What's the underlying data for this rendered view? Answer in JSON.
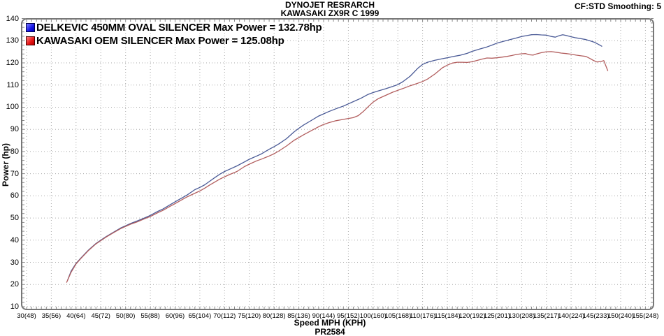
{
  "header": {
    "title_line1": "DYNOJET RESRARCH",
    "title_line2": "KAWASAKI ZX9R C 1999",
    "correction_note": "CF:STD Smoothing: 5"
  },
  "legend": [
    {
      "label": "DELKEVIC 450MM OVAL SILENCER Max Power = 132.78hp",
      "swatch_color": "#1414e6",
      "swatch_border": "#00004a"
    },
    {
      "label": "KAWASAKI OEM SILENCER Max Power = 125.08hp",
      "swatch_color": "#e61414",
      "swatch_border": "#4a0000"
    }
  ],
  "axes": {
    "y_title": "Power (hp)",
    "x_title": "Speed MPH (KPH)",
    "footer_code": "PR2584"
  },
  "chart_data": {
    "type": "line",
    "title": "DYNOJET RESRARCH / KAWASAKI ZX9R C 1999",
    "xlabel": "Speed MPH (KPH)",
    "ylabel": "Power (hp)",
    "xlim": [
      30,
      155
    ],
    "ylim": [
      10,
      140
    ],
    "grid": "dotted",
    "legend_position": "top-left",
    "smoothing": "5",
    "correction_factor": "STD",
    "y_ticks": [
      140,
      130,
      120,
      110,
      100,
      90,
      80,
      70,
      60,
      50,
      40,
      30,
      20,
      10
    ],
    "x_ticks": [
      {
        "mph": 30,
        "label": "30(48)"
      },
      {
        "mph": 35,
        "label": "35(56)"
      },
      {
        "mph": 40,
        "label": "40(64)"
      },
      {
        "mph": 45,
        "label": "45(72)"
      },
      {
        "mph": 50,
        "label": "50(80)"
      },
      {
        "mph": 55,
        "label": "55(88)"
      },
      {
        "mph": 60,
        "label": "60(96)"
      },
      {
        "mph": 65,
        "label": "65(104)"
      },
      {
        "mph": 70,
        "label": "70(112)"
      },
      {
        "mph": 75,
        "label": "75(120)"
      },
      {
        "mph": 80,
        "label": "80(128)"
      },
      {
        "mph": 85,
        "label": "85(136)"
      },
      {
        "mph": 90,
        "label": "90(144)"
      },
      {
        "mph": 95,
        "label": "95(152)"
      },
      {
        "mph": 100,
        "label": "100(160)"
      },
      {
        "mph": 105,
        "label": "105(168)"
      },
      {
        "mph": 110,
        "label": "110(176)"
      },
      {
        "mph": 115,
        "label": "115(184)"
      },
      {
        "mph": 120,
        "label": "120(192)"
      },
      {
        "mph": 125,
        "label": "125(201)"
      },
      {
        "mph": 130,
        "label": "130(208)"
      },
      {
        "mph": 135,
        "label": "135(217)"
      },
      {
        "mph": 140,
        "label": "140(224)"
      },
      {
        "mph": 145,
        "label": "145(233)"
      },
      {
        "mph": 150,
        "label": "150(240)"
      },
      {
        "mph": 155,
        "label": "155(248)"
      }
    ],
    "series": [
      {
        "name": "DELKEVIC 450MM OVAL SILENCER",
        "max_power_hp": 132.78,
        "color": "#4a5a96",
        "points": [
          [
            38.3,
            22
          ],
          [
            39,
            26
          ],
          [
            40,
            29.5
          ],
          [
            41,
            32
          ],
          [
            42.5,
            35.5
          ],
          [
            44,
            38.5
          ],
          [
            45,
            40
          ],
          [
            46,
            41.5
          ],
          [
            47.5,
            43.5
          ],
          [
            49,
            45.5
          ],
          [
            50,
            46.5
          ],
          [
            51,
            47.5
          ],
          [
            52.5,
            48.8
          ],
          [
            54,
            50.2
          ],
          [
            55,
            51.2
          ],
          [
            56.5,
            53
          ],
          [
            57.5,
            54
          ],
          [
            59,
            56
          ],
          [
            60,
            57.3
          ],
          [
            61.5,
            59.2
          ],
          [
            62.5,
            60.5
          ],
          [
            64,
            62.8
          ],
          [
            65,
            63.8
          ],
          [
            66,
            65
          ],
          [
            67,
            66.6
          ],
          [
            68,
            68.2
          ],
          [
            69,
            69.7
          ],
          [
            70,
            71
          ],
          [
            71,
            72
          ],
          [
            72.5,
            73.5
          ],
          [
            74,
            75.3
          ],
          [
            75,
            76.5
          ],
          [
            76.5,
            78
          ],
          [
            77.5,
            79
          ],
          [
            79,
            81
          ],
          [
            80,
            82.2
          ],
          [
            81,
            83.5
          ],
          [
            82.5,
            85.8
          ],
          [
            84,
            88.8
          ],
          [
            85,
            90.5
          ],
          [
            86,
            92
          ],
          [
            87.5,
            94
          ],
          [
            89,
            96
          ],
          [
            90,
            97
          ],
          [
            91,
            98
          ],
          [
            92.5,
            99.3
          ],
          [
            94,
            100.5
          ],
          [
            95,
            101.5
          ],
          [
            96,
            102.5
          ],
          [
            97.5,
            104
          ],
          [
            99,
            105.8
          ],
          [
            100,
            106.6
          ],
          [
            101,
            107.3
          ],
          [
            102.5,
            108.3
          ],
          [
            104,
            109.4
          ],
          [
            105,
            110.2
          ],
          [
            106,
            111.5
          ],
          [
            107.5,
            114
          ],
          [
            109,
            117.5
          ],
          [
            110,
            119.3
          ],
          [
            111,
            120.3
          ],
          [
            112.5,
            121.2
          ],
          [
            114,
            121.9
          ],
          [
            115,
            122.3
          ],
          [
            116,
            122.8
          ],
          [
            117.5,
            123.4
          ],
          [
            119,
            124.3
          ],
          [
            120,
            125.2
          ],
          [
            121.5,
            126.2
          ],
          [
            123,
            127.2
          ],
          [
            124,
            128
          ],
          [
            125,
            128.9
          ],
          [
            126.5,
            129.8
          ],
          [
            127.5,
            130.4
          ],
          [
            129,
            131.3
          ],
          [
            130,
            131.9
          ],
          [
            131,
            132.3
          ],
          [
            132,
            132.7
          ],
          [
            133,
            132.78
          ],
          [
            134,
            132.6
          ],
          [
            135,
            132.5
          ],
          [
            136,
            131.9
          ],
          [
            136.8,
            131.6
          ],
          [
            137.5,
            132.2
          ],
          [
            138.3,
            132.7
          ],
          [
            139,
            132.4
          ],
          [
            140,
            131.8
          ],
          [
            141,
            131.3
          ],
          [
            142,
            130.9
          ],
          [
            143,
            130.5
          ],
          [
            144,
            129.8
          ],
          [
            144.8,
            129.2
          ],
          [
            145.5,
            128.4
          ],
          [
            146.2,
            127.5
          ]
        ]
      },
      {
        "name": "KAWASAKI OEM SILENCER",
        "max_power_hp": 125.08,
        "color": "#b25e5e",
        "points": [
          [
            38.1,
            21
          ],
          [
            39,
            25.5
          ],
          [
            40,
            29.3
          ],
          [
            41,
            31.8
          ],
          [
            42.5,
            35.3
          ],
          [
            44,
            38.3
          ],
          [
            45,
            39.8
          ],
          [
            46,
            41.3
          ],
          [
            47.5,
            43.3
          ],
          [
            49,
            45.2
          ],
          [
            50,
            46.2
          ],
          [
            51,
            47.2
          ],
          [
            52.5,
            48.4
          ],
          [
            54,
            49.8
          ],
          [
            55,
            50.7
          ],
          [
            56.5,
            52.4
          ],
          [
            57.5,
            53.4
          ],
          [
            59,
            55.3
          ],
          [
            60,
            56.5
          ],
          [
            61.5,
            58.4
          ],
          [
            62.5,
            59.6
          ],
          [
            64,
            61.2
          ],
          [
            65,
            62.2
          ],
          [
            66,
            63.5
          ],
          [
            67,
            64.9
          ],
          [
            68,
            66.2
          ],
          [
            69,
            67.5
          ],
          [
            70,
            68.6
          ],
          [
            71,
            69.6
          ],
          [
            72.5,
            71
          ],
          [
            74,
            73.2
          ],
          [
            75,
            74.3
          ],
          [
            76.5,
            75.8
          ],
          [
            77.5,
            76.6
          ],
          [
            79,
            78
          ],
          [
            80,
            79
          ],
          [
            81,
            80.3
          ],
          [
            82.5,
            82.5
          ],
          [
            84,
            85
          ],
          [
            85,
            86.3
          ],
          [
            86,
            87.6
          ],
          [
            87.5,
            89.4
          ],
          [
            89,
            91.2
          ],
          [
            90,
            92.2
          ],
          [
            91,
            93
          ],
          [
            92.5,
            93.9
          ],
          [
            94,
            94.5
          ],
          [
            95,
            94.9
          ],
          [
            96,
            95.3
          ],
          [
            97,
            96.2
          ],
          [
            98,
            98
          ],
          [
            99,
            100.2
          ],
          [
            100,
            102.3
          ],
          [
            101,
            103.8
          ],
          [
            102.5,
            105.3
          ],
          [
            104,
            106.8
          ],
          [
            105,
            107.6
          ],
          [
            106,
            108.4
          ],
          [
            107.5,
            109.7
          ],
          [
            109,
            110.8
          ],
          [
            110,
            111.6
          ],
          [
            111,
            112.7
          ],
          [
            112.5,
            115
          ],
          [
            114,
            117.8
          ],
          [
            115,
            119
          ],
          [
            116,
            119.9
          ],
          [
            117,
            120.3
          ],
          [
            118,
            120.3
          ],
          [
            119,
            120.2
          ],
          [
            120,
            120.5
          ],
          [
            121,
            121.1
          ],
          [
            122,
            121.7
          ],
          [
            123,
            122.2
          ],
          [
            124,
            122.1
          ],
          [
            125,
            122.3
          ],
          [
            126,
            122.6
          ],
          [
            127,
            122.9
          ],
          [
            128,
            123.3
          ],
          [
            129,
            123.8
          ],
          [
            130,
            124.1
          ],
          [
            130.8,
            124.2
          ],
          [
            131.5,
            123.7
          ],
          [
            132.3,
            123.5
          ],
          [
            133,
            124
          ],
          [
            134,
            124.6
          ],
          [
            135,
            125
          ],
          [
            136,
            125.08
          ],
          [
            137,
            124.8
          ],
          [
            138,
            124.4
          ],
          [
            139,
            124.2
          ],
          [
            140,
            123.9
          ],
          [
            141,
            123.5
          ],
          [
            142,
            123.2
          ],
          [
            143,
            122.9
          ],
          [
            143.8,
            122
          ],
          [
            144.5,
            121.1
          ],
          [
            145.2,
            120.4
          ],
          [
            146,
            120.6
          ],
          [
            146.6,
            121
          ],
          [
            147.4,
            116.5
          ]
        ]
      }
    ]
  }
}
